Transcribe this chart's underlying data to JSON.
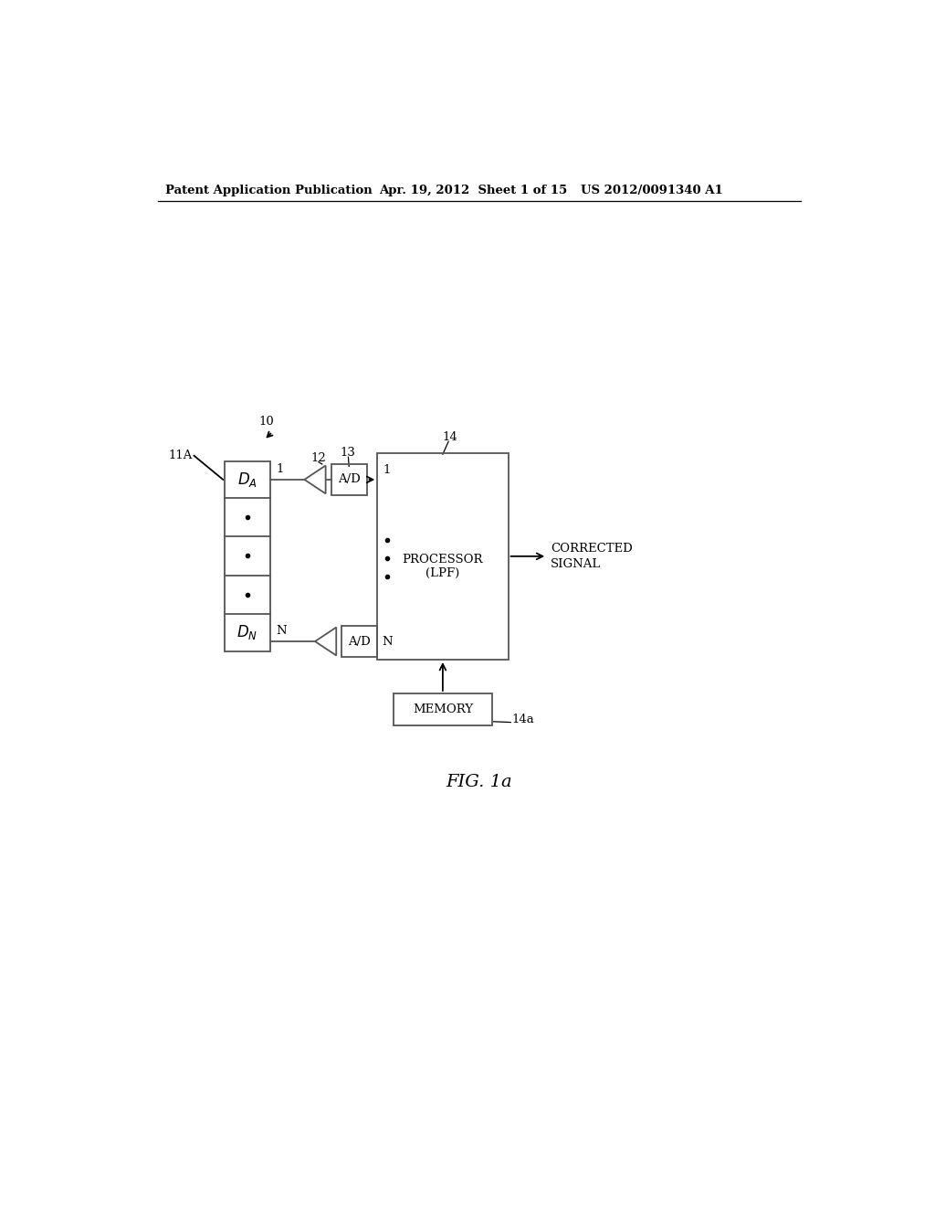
{
  "bg_color": "#ffffff",
  "header_left": "Patent Application Publication",
  "header_mid": "Apr. 19, 2012  Sheet 1 of 15",
  "header_right": "US 2012/0091340 A1",
  "fig_label": "FIG. 1a",
  "label_10": "10",
  "label_11A": "11A",
  "label_12": "12",
  "label_13": "13",
  "label_14": "14",
  "label_14a": "14a",
  "text_AD": "A/D",
  "text_processor": "PROCESSOR\n(LPF)",
  "text_memory": "MEMORY",
  "text_corrected": "CORRECTED\nSIGNAL"
}
